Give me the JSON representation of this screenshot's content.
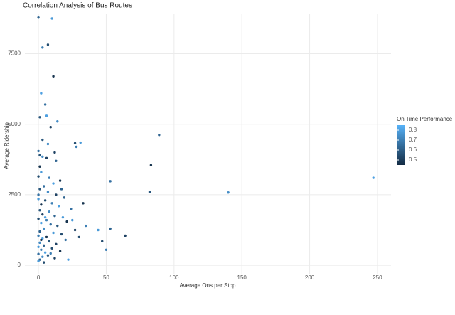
{
  "chart_data": {
    "type": "scatter",
    "title": "Correlation Analysis of Bus Routes",
    "x_label": "Average Ons per Stop",
    "y_label": "Average Ridership",
    "color_label": "On Time Performance",
    "xlim": [
      -10,
      260
    ],
    "ylim": [
      -300,
      8900
    ],
    "xticks": [
      0,
      50,
      100,
      150,
      200,
      250
    ],
    "yticks": [
      0,
      2500,
      5000,
      7500
    ],
    "grid": true,
    "legend_position": "right",
    "colorlim": [
      0.45,
      0.85
    ],
    "color_ticks": [
      0.5,
      0.6,
      0.7,
      0.8
    ],
    "low_color": "#132B43",
    "high_color": "#56B1F7",
    "x": [
      0,
      10,
      7,
      3,
      11,
      2,
      5,
      1,
      14,
      9,
      89,
      31,
      27,
      28,
      83,
      247,
      53,
      82,
      140,
      64,
      53,
      44,
      47,
      50,
      33,
      22,
      0,
      1,
      3,
      6,
      13,
      2,
      0,
      8,
      16,
      11,
      4,
      1,
      7,
      13,
      19,
      0,
      5,
      10,
      2,
      15,
      24,
      1,
      8,
      3,
      12,
      18,
      0,
      6,
      21,
      2,
      9,
      14,
      4,
      27,
      1,
      11,
      17,
      0,
      6,
      3,
      20,
      8,
      1,
      13,
      4,
      0,
      10,
      2,
      16,
      5,
      0,
      7,
      3,
      12,
      1,
      0,
      4,
      9,
      2,
      5,
      0,
      3,
      7,
      12,
      17,
      25,
      30,
      35,
      1,
      6
    ],
    "y": [
      8780,
      8750,
      7820,
      7720,
      6700,
      6100,
      5700,
      5250,
      5100,
      4900,
      4620,
      4350,
      4330,
      4200,
      3550,
      3100,
      2980,
      2600,
      2580,
      1050,
      1300,
      1250,
      850,
      550,
      2200,
      200,
      4050,
      3900,
      3850,
      3800,
      3700,
      3300,
      3150,
      3100,
      3000,
      2900,
      2800,
      2700,
      2600,
      2500,
      2400,
      2350,
      2300,
      2200,
      2150,
      2100,
      2000,
      1950,
      1900,
      1800,
      1750,
      1700,
      1650,
      1600,
      1550,
      1500,
      1450,
      1400,
      1300,
      1250,
      1200,
      1150,
      1100,
      1050,
      1000,
      950,
      900,
      850,
      800,
      750,
      700,
      650,
      600,
      550,
      500,
      450,
      400,
      350,
      300,
      250,
      200,
      150,
      100,
      420,
      900,
      1700,
      2500,
      4450,
      4300,
      4000,
      2700,
      1600,
      1000,
      1400,
      3500,
      5300
    ],
    "c": [
      0.62,
      0.78,
      0.55,
      0.7,
      0.48,
      0.8,
      0.66,
      0.58,
      0.74,
      0.52,
      0.62,
      0.78,
      0.55,
      0.7,
      0.48,
      0.8,
      0.66,
      0.58,
      0.74,
      0.52,
      0.62,
      0.78,
      0.55,
      0.7,
      0.48,
      0.8,
      0.66,
      0.58,
      0.74,
      0.52,
      0.62,
      0.78,
      0.55,
      0.7,
      0.48,
      0.8,
      0.66,
      0.58,
      0.74,
      0.52,
      0.62,
      0.78,
      0.55,
      0.7,
      0.48,
      0.8,
      0.66,
      0.58,
      0.74,
      0.52,
      0.62,
      0.78,
      0.55,
      0.7,
      0.48,
      0.8,
      0.66,
      0.58,
      0.74,
      0.52,
      0.62,
      0.78,
      0.55,
      0.7,
      0.48,
      0.8,
      0.66,
      0.58,
      0.74,
      0.52,
      0.62,
      0.78,
      0.55,
      0.7,
      0.48,
      0.8,
      0.66,
      0.58,
      0.74,
      0.52,
      0.62,
      0.78,
      0.55,
      0.7,
      0.48,
      0.8,
      0.66,
      0.58,
      0.74,
      0.52,
      0.62,
      0.78,
      0.55,
      0.7,
      0.48,
      0.8
    ]
  }
}
